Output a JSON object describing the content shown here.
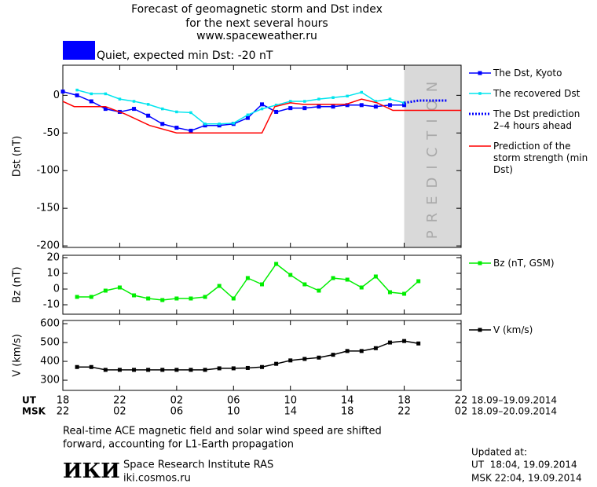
{
  "page": {
    "title": [
      "Forecast of geomagnetic storm and Dst index",
      "for the next several hours",
      "www.spaceweather.ru"
    ],
    "status": {
      "color": "#0000ff",
      "text": "Quiet, expected min Dst: -20 nT"
    },
    "x_row_labels": [
      "UT",
      "MSK"
    ],
    "x_dates": [
      "18.09–19.09.2014",
      "18.09–20.09.2014"
    ],
    "note": [
      "Real-time ACE magnetic field and solar wind speed are shifted",
      "forward, accounting for L1-Earth propagation"
    ],
    "logo": "ИКИ",
    "institute": [
      "Space Research Institute RAS",
      "iki.cosmos.ru"
    ],
    "updated": [
      "Updated at:",
      "UT  18:04, 19.09.2014",
      "MSK 22:04, 19.09.2014"
    ]
  },
  "chart_data": [
    {
      "type": "line",
      "ylabel": "Dst (nT)",
      "ylim": [
        -202,
        40
      ],
      "yticks": [
        0,
        -50,
        -100,
        -150,
        -200
      ],
      "shaded_region": {
        "xlim": [
          24,
          28
        ],
        "label": "PREDICTION",
        "color": "#d9d9d9"
      },
      "series": [
        {
          "name": "The Dst, Kyoto",
          "color": "#0000ff",
          "marker": "square",
          "x": [
            0,
            1,
            2,
            3,
            4,
            5,
            6,
            7,
            8,
            9,
            10,
            11,
            12,
            13,
            14,
            15,
            16,
            17,
            18,
            19,
            20,
            21,
            22,
            23,
            24
          ],
          "values": [
            5,
            0,
            -8,
            -18,
            -22,
            -18,
            -27,
            -38,
            -43,
            -47,
            -40,
            -40,
            -38,
            -30,
            -12,
            -22,
            -17,
            -17,
            -15,
            -15,
            -13,
            -13,
            -15,
            -13,
            -13
          ]
        },
        {
          "name": "The recovered Dst",
          "color": "#00e5ee",
          "marker": "small-square",
          "x": [
            1,
            2,
            3,
            4,
            5,
            6,
            7,
            8,
            9,
            10,
            11,
            12,
            13,
            14,
            15,
            16,
            17,
            18,
            19,
            20,
            21,
            22,
            23,
            24
          ],
          "values": [
            7,
            2,
            2,
            -5,
            -8,
            -12,
            -18,
            -22,
            -23,
            -38,
            -38,
            -37,
            -26,
            -18,
            -13,
            -8,
            -8,
            -5,
            -3,
            -1,
            4,
            -8,
            -5,
            -10
          ]
        },
        {
          "name": "The Dst prediction 2–4 hours ahead",
          "color": "#0000ff",
          "dash": true,
          "x": [
            24,
            25,
            26,
            27
          ],
          "values": [
            -10,
            -7,
            -7,
            -7
          ]
        },
        {
          "name": "Prediction of the storm strength (min Dst)",
          "color": "#ff0000",
          "x": [
            0,
            0.8,
            3,
            4.4,
            6.1,
            8,
            14,
            14.9,
            16,
            16.9,
            19.9,
            21,
            22.1,
            23.2,
            28
          ],
          "values": [
            -8,
            -15,
            -15,
            -25,
            -40,
            -50,
            -50,
            -15,
            -10,
            -12,
            -12,
            -5,
            -10,
            -20,
            -20
          ]
        }
      ]
    },
    {
      "type": "line",
      "ylabel": "Bz (nT)",
      "ylim": [
        -16,
        21.5
      ],
      "yticks": [
        -10,
        0,
        10,
        20
      ],
      "series": [
        {
          "name": "Bz (nT, GSM)",
          "color": "#00ee00",
          "marker": "square",
          "x": [
            1,
            2,
            3,
            4,
            5,
            6,
            7,
            8,
            9,
            10,
            11,
            12,
            13,
            14,
            15,
            16,
            17,
            18,
            19,
            20,
            21,
            22,
            23,
            24,
            25
          ],
          "values": [
            -5,
            -5,
            -1,
            1,
            -4,
            -6,
            -7,
            -6,
            -6,
            -5,
            2,
            -6,
            7,
            3,
            16,
            9,
            3,
            -1,
            7,
            6,
            1,
            8,
            -2,
            -3,
            5
          ]
        }
      ]
    },
    {
      "type": "line",
      "ylabel": "V (km/s)",
      "ylim": [
        246,
        617
      ],
      "yticks": [
        300,
        400,
        500,
        600
      ],
      "xlim": [
        0,
        28
      ],
      "xticks": [
        {
          "value": 0,
          "label": "18"
        },
        {
          "value": 4,
          "label": "22"
        },
        {
          "value": 8,
          "label": "02"
        },
        {
          "value": 12,
          "label": "06"
        },
        {
          "value": 16,
          "label": "10"
        },
        {
          "value": 20,
          "label": "14"
        },
        {
          "value": 24,
          "label": "18"
        },
        {
          "value": 28,
          "label": "22"
        }
      ],
      "xticks_msk": [
        {
          "value": 0,
          "label": "22"
        },
        {
          "value": 4,
          "label": "02"
        },
        {
          "value": 8,
          "label": "06"
        },
        {
          "value": 12,
          "label": "10"
        },
        {
          "value": 16,
          "label": "14"
        },
        {
          "value": 20,
          "label": "18"
        },
        {
          "value": 24,
          "label": "22"
        },
        {
          "value": 28,
          "label": "02"
        }
      ],
      "series": [
        {
          "name": "V (km/s)",
          "color": "#000000",
          "marker": "square",
          "x": [
            1,
            2,
            3,
            4,
            5,
            6,
            7,
            8,
            9,
            10,
            11,
            12,
            13,
            14,
            15,
            16,
            17,
            18,
            19,
            20,
            21,
            22,
            23,
            24,
            25
          ],
          "values": [
            370,
            370,
            355,
            355,
            355,
            355,
            355,
            355,
            355,
            355,
            363,
            363,
            365,
            370,
            387,
            405,
            413,
            420,
            435,
            455,
            455,
            470,
            500,
            508,
            495
          ]
        }
      ]
    }
  ]
}
